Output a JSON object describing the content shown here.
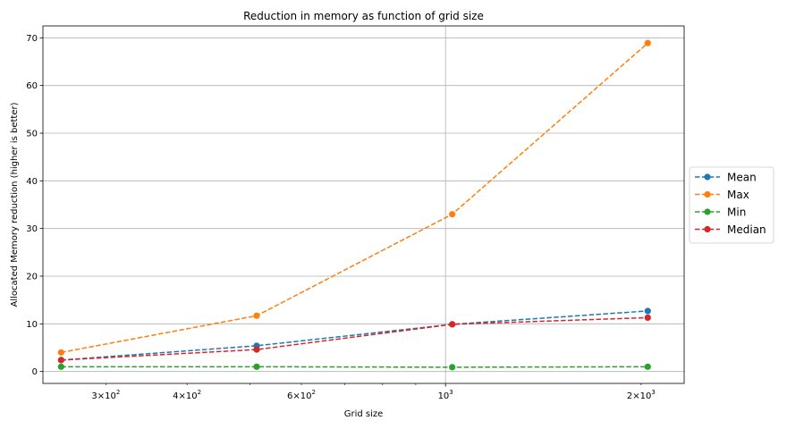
{
  "chart_data": {
    "type": "line",
    "title": "Reduction in memory as function of grid size",
    "xlabel": "Grid size",
    "ylabel": "Allocated Memory reduction (higher is better)",
    "xscale": "log",
    "xlim": [
      240,
      2330
    ],
    "ylim": [
      -2.5,
      72.5
    ],
    "x": [
      256,
      512,
      1024,
      2048
    ],
    "xticks": [
      {
        "value": 300,
        "base": "3",
        "mult": "×",
        "exp_base": "10",
        "exp": "2"
      },
      {
        "value": 400,
        "base": "4",
        "mult": "×",
        "exp_base": "10",
        "exp": "2"
      },
      {
        "value": 600,
        "base": "6",
        "mult": "×",
        "exp_base": "10",
        "exp": "2"
      },
      {
        "value": 1000,
        "base": "",
        "mult": "",
        "exp_base": "10",
        "exp": "3"
      },
      {
        "value": 2000,
        "base": "2",
        "mult": "×",
        "exp_base": "10",
        "exp": "3"
      }
    ],
    "yticks": [
      0,
      10,
      20,
      30,
      40,
      50,
      60,
      70
    ],
    "ytick_labels": [
      "0",
      "10",
      "20",
      "30",
      "40",
      "50",
      "60",
      "70"
    ],
    "grid": true,
    "legend_position": "outside-right",
    "series": [
      {
        "name": "Mean",
        "color": "#1f77b4",
        "values": [
          2.4,
          5.4,
          9.9,
          12.7
        ]
      },
      {
        "name": "Max",
        "color": "#ff7f0e",
        "values": [
          4.0,
          11.7,
          33.0,
          68.9
        ]
      },
      {
        "name": "Min",
        "color": "#2ca02c",
        "values": [
          1.0,
          1.0,
          0.9,
          1.0
        ]
      },
      {
        "name": "Median",
        "color": "#d62728",
        "values": [
          2.4,
          4.6,
          9.9,
          11.3
        ]
      }
    ]
  }
}
